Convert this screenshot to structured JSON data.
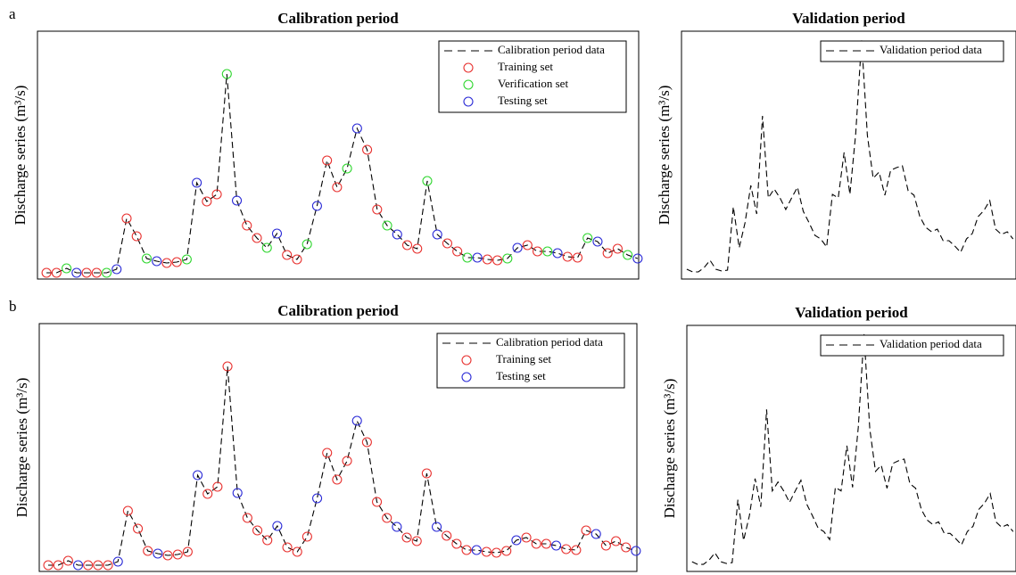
{
  "chart_data": [
    {
      "type": "line",
      "panel_label": "a",
      "title": "Calibration period",
      "y_label": "Discharge series (m³/s)",
      "xlim": [
        -0.9,
        59.1
      ],
      "ylim": [
        0,
        278
      ],
      "legend": "upper right",
      "series": [
        {
          "name": "Calibration period data",
          "color": "#000000",
          "line_style": "dashed",
          "values": [
            7,
            7,
            12,
            7,
            7,
            7,
            7,
            11,
            68,
            48,
            23,
            20,
            18,
            19,
            22,
            108,
            87,
            95,
            230,
            88,
            60,
            46,
            35,
            51,
            27,
            22,
            39,
            82,
            133,
            103,
            124,
            169,
            145,
            78,
            60,
            50,
            38,
            34,
            110,
            50,
            40,
            31,
            24,
            24,
            22,
            21,
            23,
            35,
            38,
            31,
            31,
            29,
            25,
            24,
            46,
            42,
            29,
            34,
            27,
            23
          ]
        },
        {
          "name": "Training set",
          "color": "#e8312f",
          "marker": "circle",
          "values": [
            7,
            7,
            null,
            null,
            7,
            7,
            null,
            null,
            68,
            48,
            null,
            null,
            18,
            19,
            null,
            null,
            87,
            95,
            null,
            null,
            60,
            46,
            null,
            null,
            27,
            22,
            null,
            null,
            133,
            103,
            null,
            null,
            145,
            78,
            null,
            null,
            38,
            34,
            null,
            null,
            40,
            31,
            null,
            null,
            22,
            21,
            null,
            null,
            38,
            31,
            null,
            null,
            25,
            24,
            null,
            null,
            29,
            34,
            null,
            null
          ]
        },
        {
          "name": "Verification set",
          "color": "#2fd62f",
          "marker": "circle",
          "values": [
            null,
            null,
            12,
            null,
            null,
            null,
            7,
            null,
            null,
            null,
            23,
            null,
            null,
            null,
            22,
            null,
            null,
            null,
            230,
            null,
            null,
            null,
            35,
            null,
            null,
            null,
            39,
            null,
            null,
            null,
            124,
            null,
            null,
            null,
            60,
            null,
            null,
            null,
            110,
            null,
            null,
            null,
            24,
            null,
            null,
            null,
            23,
            null,
            null,
            null,
            31,
            null,
            null,
            null,
            46,
            null,
            null,
            null,
            27,
            null
          ]
        },
        {
          "name": "Testing set",
          "color": "#2a2ad6",
          "marker": "circle",
          "values": [
            null,
            null,
            null,
            7,
            null,
            null,
            null,
            11,
            null,
            null,
            null,
            20,
            null,
            null,
            null,
            108,
            null,
            null,
            null,
            88,
            null,
            null,
            null,
            51,
            null,
            null,
            null,
            82,
            null,
            null,
            null,
            169,
            null,
            null,
            null,
            50,
            null,
            null,
            null,
            50,
            null,
            null,
            null,
            24,
            null,
            null,
            null,
            35,
            null,
            null,
            null,
            29,
            null,
            null,
            null,
            42,
            null,
            null,
            null,
            23
          ]
        }
      ]
    },
    {
      "type": "line",
      "title": "Validation period",
      "y_label": "Discharge series (m³/s)",
      "xlim": [
        -0.9,
        56.5
      ],
      "ylim": [
        0,
        278
      ],
      "legend": "upper right",
      "series": [
        {
          "name": "Validation period data",
          "color": "#000000",
          "line_style": "dashed",
          "values": [
            11,
            8,
            8,
            13,
            21,
            11,
            9,
            10,
            81,
            35,
            63,
            105,
            73,
            183,
            91,
            101,
            91,
            78,
            91,
            103,
            76,
            63,
            49,
            45,
            36,
            95,
            91,
            142,
            95,
            163,
            268,
            161,
            113,
            120,
            94,
            122,
            125,
            127,
            99,
            94,
            70,
            58,
            53,
            56,
            43,
            43,
            37,
            30,
            45,
            51,
            70,
            77,
            88,
            56,
            50,
            53,
            45
          ]
        }
      ]
    },
    {
      "type": "line",
      "panel_label": "b",
      "title": "Calibration period",
      "y_label": "Discharge series (m³/s)",
      "xlim": [
        -0.9,
        59.1
      ],
      "ylim": [
        0,
        278
      ],
      "legend": "upper right",
      "series": [
        {
          "name": "Calibration period data",
          "color": "#000000",
          "line_style": "dashed",
          "values": [
            7,
            7,
            12,
            7,
            7,
            7,
            7,
            11,
            68,
            48,
            23,
            20,
            18,
            19,
            22,
            108,
            87,
            95,
            230,
            88,
            60,
            46,
            35,
            51,
            27,
            22,
            39,
            82,
            133,
            103,
            124,
            169,
            145,
            78,
            60,
            50,
            38,
            34,
            110,
            50,
            40,
            31,
            24,
            24,
            22,
            21,
            23,
            35,
            38,
            31,
            31,
            29,
            25,
            24,
            46,
            42,
            29,
            34,
            27,
            23
          ]
        },
        {
          "name": "Training set",
          "color": "#e8312f",
          "marker": "circle",
          "values": [
            7,
            7,
            12,
            null,
            7,
            7,
            7,
            null,
            68,
            48,
            23,
            null,
            18,
            19,
            22,
            null,
            87,
            95,
            230,
            null,
            60,
            46,
            35,
            null,
            27,
            22,
            39,
            null,
            133,
            103,
            124,
            null,
            145,
            78,
            60,
            null,
            38,
            34,
            110,
            null,
            40,
            31,
            24,
            null,
            22,
            21,
            23,
            null,
            38,
            31,
            31,
            null,
            25,
            24,
            46,
            null,
            29,
            34,
            27,
            null
          ]
        },
        {
          "name": "Testing set",
          "color": "#2a2ad6",
          "marker": "circle",
          "values": [
            null,
            null,
            null,
            7,
            null,
            null,
            null,
            11,
            null,
            null,
            null,
            20,
            null,
            null,
            null,
            108,
            null,
            null,
            null,
            88,
            null,
            null,
            null,
            51,
            null,
            null,
            null,
            82,
            null,
            null,
            null,
            169,
            null,
            null,
            null,
            50,
            null,
            null,
            null,
            50,
            null,
            null,
            null,
            24,
            null,
            null,
            null,
            35,
            null,
            null,
            null,
            29,
            null,
            null,
            null,
            42,
            null,
            null,
            null,
            23
          ]
        }
      ]
    },
    {
      "type": "line",
      "title": "Validation period",
      "y_label": "Discharge series (m³/s)",
      "xlim": [
        -0.9,
        56.5
      ],
      "ylim": [
        0,
        278
      ],
      "legend": "upper right",
      "series": [
        {
          "name": "Validation period data",
          "color": "#000000",
          "line_style": "dashed",
          "values": [
            11,
            8,
            8,
            13,
            21,
            11,
            9,
            10,
            81,
            35,
            63,
            105,
            73,
            183,
            91,
            101,
            91,
            78,
            91,
            103,
            76,
            63,
            49,
            45,
            36,
            95,
            91,
            142,
            95,
            163,
            268,
            161,
            113,
            120,
            94,
            122,
            125,
            127,
            99,
            94,
            70,
            58,
            53,
            56,
            43,
            43,
            37,
            30,
            45,
            51,
            70,
            77,
            88,
            56,
            50,
            53,
            45
          ]
        }
      ]
    }
  ]
}
